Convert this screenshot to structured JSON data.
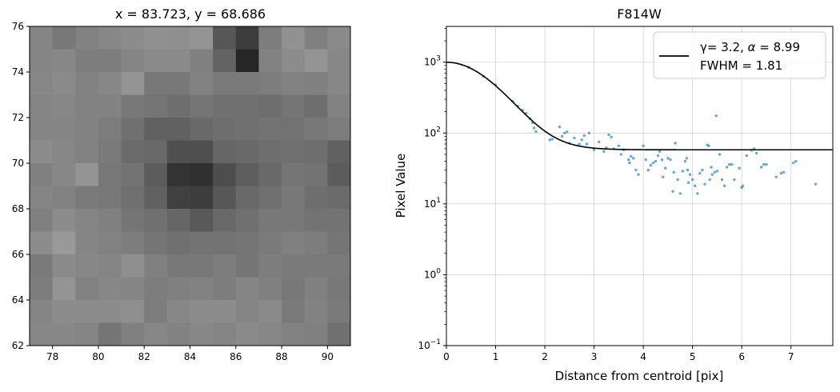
{
  "chart_data": [
    {
      "type": "heatmap",
      "title": "x = 83.723, y = 68.686",
      "colormap": "gray",
      "xlim": [
        77,
        91
      ],
      "ylim": [
        62,
        76
      ],
      "xticks": [
        "78",
        "80",
        "82",
        "84",
        "86",
        "88",
        "90"
      ],
      "yticks": [
        "62",
        "64",
        "66",
        "68",
        "70",
        "72",
        "74",
        "76"
      ],
      "rows_top_to_bottom": [
        [
          0.52,
          0.47,
          0.51,
          0.53,
          0.55,
          0.57,
          0.56,
          0.58,
          0.34,
          0.24,
          0.49,
          0.57,
          0.5,
          0.54
        ],
        [
          0.52,
          0.53,
          0.49,
          0.49,
          0.52,
          0.54,
          0.54,
          0.5,
          0.39,
          0.15,
          0.51,
          0.55,
          0.58,
          0.53
        ],
        [
          0.53,
          0.54,
          0.51,
          0.53,
          0.58,
          0.47,
          0.47,
          0.51,
          0.48,
          0.48,
          0.49,
          0.51,
          0.5,
          0.53
        ],
        [
          0.52,
          0.53,
          0.51,
          0.51,
          0.47,
          0.46,
          0.43,
          0.46,
          0.44,
          0.44,
          0.43,
          0.46,
          0.43,
          0.51
        ],
        [
          0.52,
          0.52,
          0.51,
          0.49,
          0.44,
          0.38,
          0.38,
          0.41,
          0.43,
          0.44,
          0.45,
          0.45,
          0.47,
          0.49
        ],
        [
          0.55,
          0.53,
          0.51,
          0.48,
          0.42,
          0.41,
          0.31,
          0.31,
          0.4,
          0.41,
          0.43,
          0.44,
          0.43,
          0.38
        ],
        [
          0.5,
          0.53,
          0.58,
          0.47,
          0.45,
          0.36,
          0.2,
          0.19,
          0.3,
          0.37,
          0.41,
          0.46,
          0.45,
          0.36
        ],
        [
          0.52,
          0.51,
          0.48,
          0.47,
          0.44,
          0.38,
          0.25,
          0.24,
          0.34,
          0.41,
          0.44,
          0.47,
          0.43,
          0.42
        ],
        [
          0.5,
          0.55,
          0.52,
          0.5,
          0.46,
          0.44,
          0.4,
          0.35,
          0.41,
          0.44,
          0.47,
          0.47,
          0.45,
          0.45
        ],
        [
          0.55,
          0.6,
          0.52,
          0.51,
          0.49,
          0.46,
          0.44,
          0.45,
          0.45,
          0.46,
          0.48,
          0.5,
          0.49,
          0.46
        ],
        [
          0.48,
          0.54,
          0.53,
          0.52,
          0.56,
          0.5,
          0.47,
          0.47,
          0.49,
          0.46,
          0.49,
          0.48,
          0.48,
          0.48
        ],
        [
          0.49,
          0.58,
          0.51,
          0.53,
          0.52,
          0.49,
          0.5,
          0.51,
          0.49,
          0.52,
          0.5,
          0.47,
          0.5,
          0.47
        ],
        [
          0.52,
          0.55,
          0.55,
          0.55,
          0.56,
          0.49,
          0.53,
          0.55,
          0.55,
          0.52,
          0.54,
          0.48,
          0.51,
          0.48
        ],
        [
          0.53,
          0.53,
          0.52,
          0.46,
          0.5,
          0.53,
          0.51,
          0.53,
          0.52,
          0.54,
          0.53,
          0.51,
          0.5,
          0.44
        ]
      ]
    },
    {
      "type": "scatter",
      "title": "F814W",
      "xlabel": "Distance from centroid [pix]",
      "ylabel": "Pixel Value",
      "xlim": [
        0,
        7.85
      ],
      "ylim": [
        0.1,
        3200
      ],
      "yscale": "log",
      "grid": true,
      "xticks": [
        "0",
        "1",
        "2",
        "3",
        "4",
        "5",
        "6",
        "7"
      ],
      "yticks": [
        "10",
        "10",
        "10",
        "10",
        "10"
      ],
      "ytick_exponents": [
        "−1",
        "0",
        "1",
        "2",
        "3"
      ],
      "legend_position": "top-right",
      "legend": {
        "line1_prefix": "γ= 3.2, ",
        "line1_alpha": "α",
        "line1_suffix": " = 8.99",
        "line2": "FWHM = 1.81"
      },
      "model_line": {
        "gamma": 3.2,
        "alpha": 8.99,
        "amplitude": 940,
        "background": 58,
        "color": "#000000"
      },
      "point_color": "#1f77b4",
      "points": [
        [
          0.45,
          850
        ],
        [
          0.75,
          630
        ],
        [
          1.0,
          480
        ],
        [
          1.35,
          280
        ],
        [
          1.45,
          240
        ],
        [
          1.55,
          210
        ],
        [
          1.62,
          190
        ],
        [
          1.7,
          160
        ],
        [
          1.75,
          140
        ],
        [
          1.78,
          118
        ],
        [
          1.82,
          105
        ],
        [
          2.1,
          80
        ],
        [
          2.15,
          82
        ],
        [
          2.3,
          122
        ],
        [
          2.4,
          100
        ],
        [
          2.45,
          104
        ],
        [
          2.35,
          90
        ],
        [
          2.5,
          72
        ],
        [
          2.6,
          85
        ],
        [
          2.7,
          70
        ],
        [
          2.75,
          80
        ],
        [
          2.85,
          70
        ],
        [
          2.9,
          100
        ],
        [
          2.8,
          92
        ],
        [
          3.0,
          58
        ],
        [
          3.1,
          75
        ],
        [
          3.2,
          55
        ],
        [
          3.25,
          62
        ],
        [
          3.3,
          95
        ],
        [
          3.35,
          88
        ],
        [
          3.4,
          60
        ],
        [
          3.5,
          66
        ],
        [
          3.55,
          50
        ],
        [
          3.6,
          58
        ],
        [
          3.7,
          42
        ],
        [
          3.72,
          38
        ],
        [
          3.75,
          47
        ],
        [
          3.8,
          44
        ],
        [
          3.85,
          30
        ],
        [
          3.9,
          26
        ],
        [
          4.0,
          66
        ],
        [
          4.05,
          42
        ],
        [
          4.1,
          30
        ],
        [
          4.15,
          35
        ],
        [
          4.2,
          38
        ],
        [
          4.25,
          40
        ],
        [
          4.3,
          48
        ],
        [
          4.33,
          55
        ],
        [
          4.38,
          42
        ],
        [
          4.4,
          24
        ],
        [
          4.45,
          32
        ],
        [
          4.5,
          44
        ],
        [
          4.55,
          42
        ],
        [
          4.6,
          15
        ],
        [
          4.62,
          28
        ],
        [
          4.65,
          72
        ],
        [
          4.7,
          22
        ],
        [
          4.75,
          14
        ],
        [
          4.8,
          29
        ],
        [
          4.85,
          40
        ],
        [
          4.88,
          44
        ],
        [
          4.9,
          30
        ],
        [
          4.92,
          20
        ],
        [
          4.95,
          26
        ],
        [
          5.0,
          22
        ],
        [
          5.05,
          18
        ],
        [
          5.1,
          14
        ],
        [
          5.15,
          27
        ],
        [
          5.2,
          30
        ],
        [
          5.25,
          19
        ],
        [
          5.3,
          68
        ],
        [
          5.33,
          66
        ],
        [
          5.35,
          22
        ],
        [
          5.38,
          33
        ],
        [
          5.4,
          26
        ],
        [
          5.45,
          28
        ],
        [
          5.48,
          175
        ],
        [
          5.5,
          29
        ],
        [
          5.55,
          50
        ],
        [
          5.6,
          22
        ],
        [
          5.65,
          18
        ],
        [
          5.7,
          33
        ],
        [
          5.75,
          36
        ],
        [
          5.8,
          36
        ],
        [
          5.85,
          22
        ],
        [
          5.95,
          32
        ],
        [
          6.0,
          17
        ],
        [
          6.02,
          18
        ],
        [
          6.1,
          48
        ],
        [
          6.2,
          57
        ],
        [
          6.25,
          60
        ],
        [
          6.3,
          52
        ],
        [
          6.4,
          33
        ],
        [
          6.45,
          36
        ],
        [
          6.5,
          36
        ],
        [
          6.7,
          24
        ],
        [
          6.8,
          27
        ],
        [
          6.85,
          28
        ],
        [
          7.05,
          38
        ],
        [
          7.1,
          40
        ],
        [
          7.5,
          19
        ]
      ]
    }
  ]
}
